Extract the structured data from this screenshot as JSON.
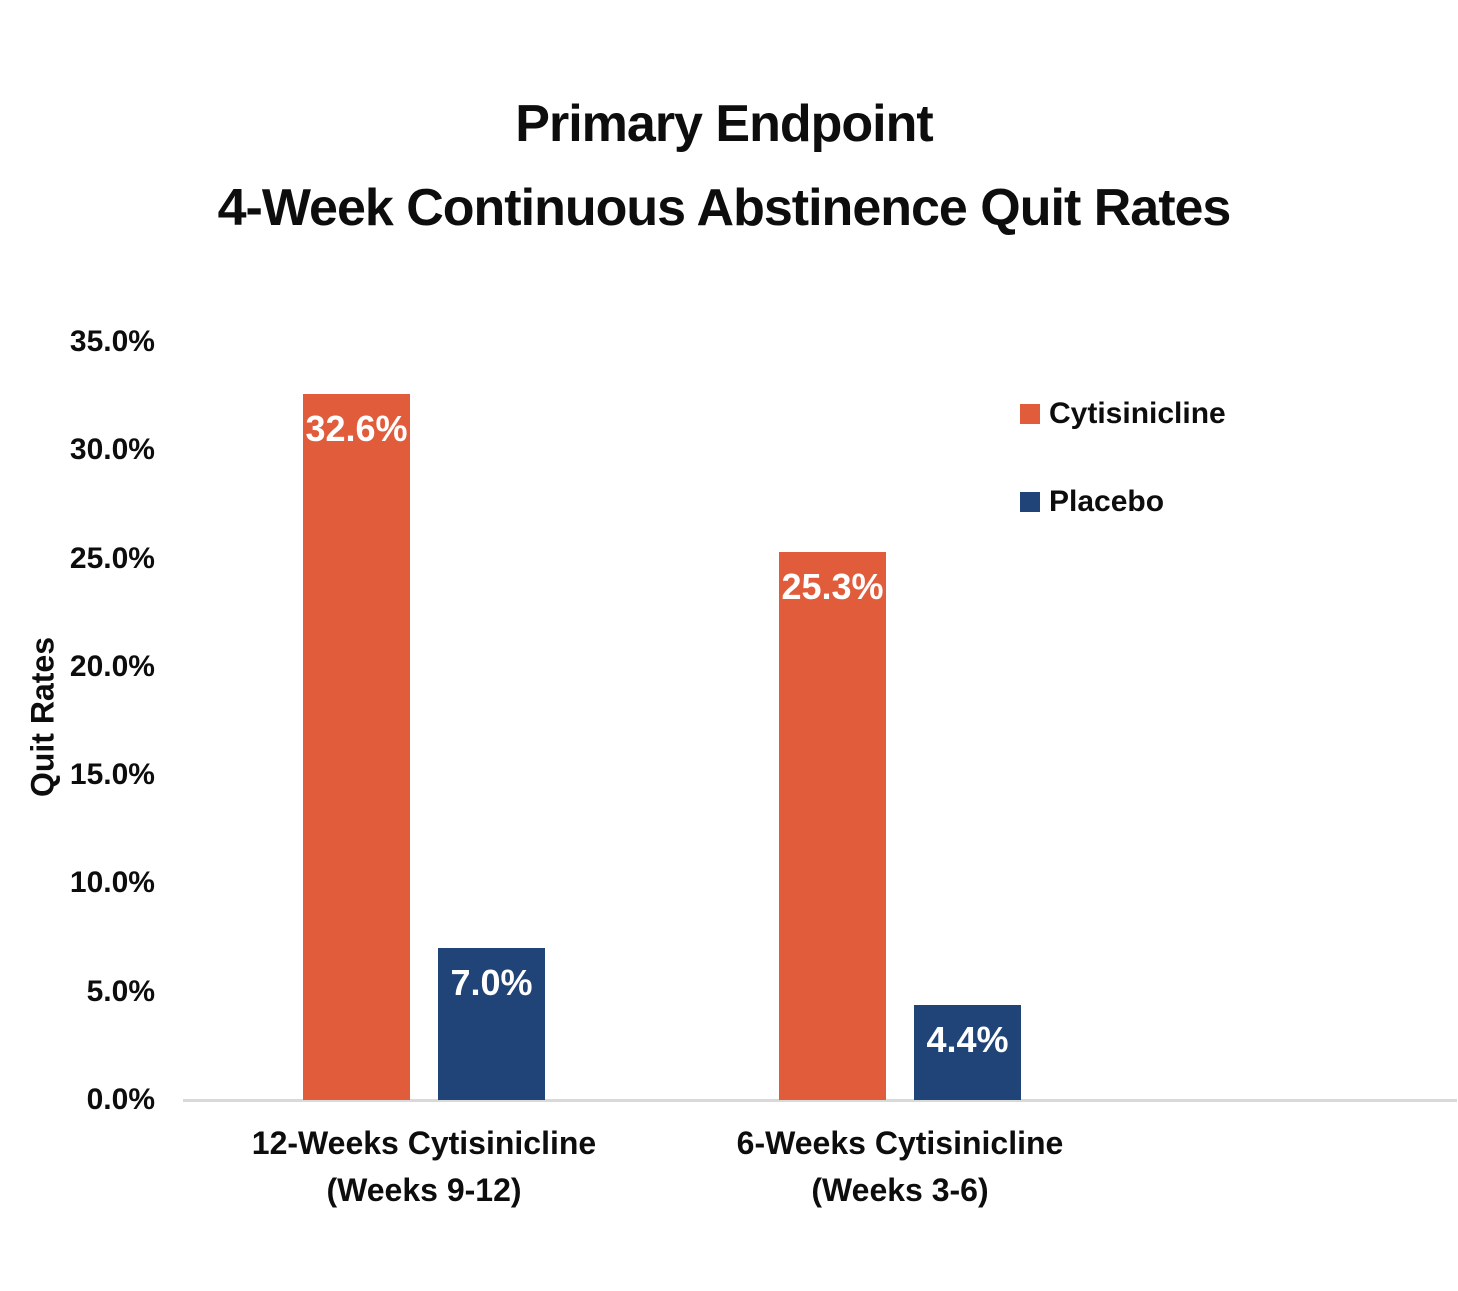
{
  "title": {
    "line1": "Primary Endpoint",
    "line2": "4-Week Continuous Abstinence Quit Rates"
  },
  "chart_data": {
    "type": "bar",
    "title": "Primary Endpoint 4-Week Continuous Abstinence Quit Rates",
    "ylabel": "Quit Rates",
    "xlabel": "",
    "ylim": [
      0,
      35
    ],
    "grid": false,
    "yticks": [
      {
        "value": 0,
        "label": "0.0%"
      },
      {
        "value": 5,
        "label": "5.0%"
      },
      {
        "value": 10,
        "label": "10.0%"
      },
      {
        "value": 15,
        "label": "15.0%"
      },
      {
        "value": 20,
        "label": "20.0%"
      },
      {
        "value": 25,
        "label": "25.0%"
      },
      {
        "value": 30,
        "label": "30.0%"
      },
      {
        "value": 35,
        "label": "35.0%"
      }
    ],
    "categories": [
      {
        "line1": "12-Weeks Cytisinicline",
        "line2": "(Weeks 9-12)"
      },
      {
        "line1": "6-Weeks Cytisinicline",
        "line2": "(Weeks 3-6)"
      }
    ],
    "series": [
      {
        "name": "Cytisinicline",
        "color": "#E05C3B",
        "values": [
          32.6,
          25.3
        ],
        "data_labels": [
          "32.6%",
          "25.3%"
        ]
      },
      {
        "name": "Placebo",
        "color": "#204478",
        "values": [
          7.0,
          4.4
        ],
        "data_labels": [
          "7.0%",
          "4.4%"
        ]
      }
    ],
    "legend": {
      "position": "upper-right",
      "entries": [
        {
          "name": "Cytisinicline",
          "color": "#E05C3B"
        },
        {
          "name": "Placebo",
          "color": "#204478"
        }
      ]
    },
    "colors": {
      "bar_label_text": "#FFFFFF",
      "axis_line": "#D9D9D9",
      "text": "#0D0D0D",
      "background": "#FFFFFF"
    }
  }
}
